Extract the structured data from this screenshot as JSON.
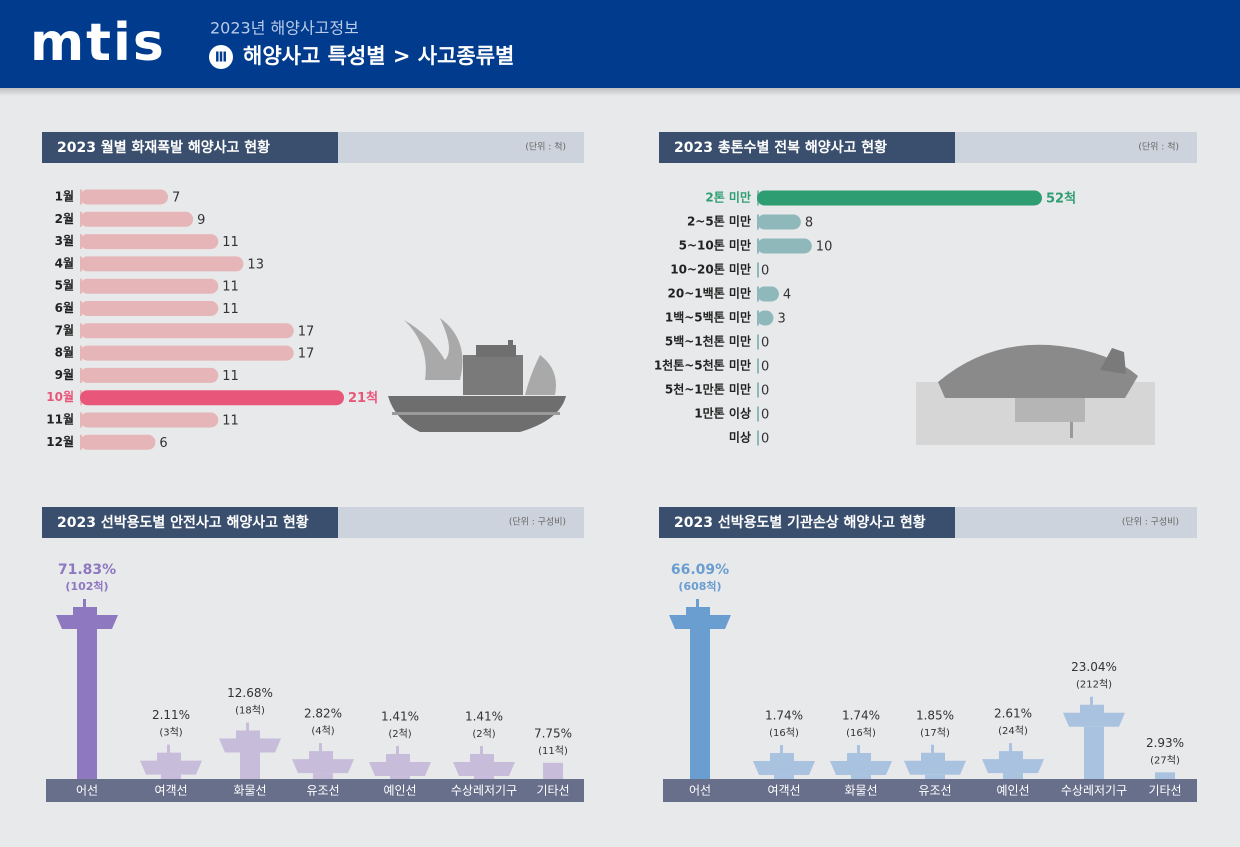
{
  "header": {
    "logo": "mtis",
    "subtitle": "2023년 해양사고정보",
    "badge": "Ⅲ",
    "title": "해양사고 특성별 > 사고종류별"
  },
  "chart_data": [
    {
      "type": "hbar",
      "title": "2023 월별 화재폭발 해양사고 현황",
      "unit": "(단위 : 척)",
      "categories": [
        "1월",
        "2월",
        "3월",
        "4월",
        "5월",
        "6월",
        "7월",
        "8월",
        "9월",
        "10월",
        "11월",
        "12월"
      ],
      "values": [
        7,
        9,
        11,
        13,
        11,
        11,
        17,
        17,
        11,
        21,
        11,
        6
      ],
      "value_labels": [
        "7",
        "9",
        "11",
        "13",
        "11",
        "11",
        "17",
        "17",
        "11",
        "21척",
        "11",
        "6"
      ],
      "color": "#e5b5b7",
      "highlight": {
        "index": 9,
        "color": "#e8567a"
      }
    },
    {
      "type": "hbar",
      "title": "2023 총톤수별 전복 해양사고 현황",
      "unit": "(단위 : 척)",
      "categories": [
        "2톤 미만",
        "2~5톤 미만",
        "5~10톤 미만",
        "10~20톤 미만",
        "20~1백톤 미만",
        "1백~5백톤 미만",
        "5백~1천톤 미만",
        "1천톤~5천톤 미만",
        "5천~1만톤 미만",
        "1만톤 이상",
        "미상"
      ],
      "values": [
        52,
        8,
        10,
        0,
        4,
        3,
        0,
        0,
        0,
        0,
        0
      ],
      "value_labels": [
        "52척",
        "8",
        "10",
        "0",
        "4",
        "3",
        "0",
        "0",
        "0",
        "0",
        "0"
      ],
      "color": "#8fb8bb",
      "highlight": {
        "index": 0,
        "color": "#2e9e72"
      }
    },
    {
      "type": "bar",
      "title": "2023 선박용도별 안전사고 해양사고 현황",
      "unit": "(단위 : 구성비)",
      "categories": [
        "어선",
        "여객선",
        "화물선",
        "유조선",
        "예인선",
        "수상레저기구",
        "기타선"
      ],
      "values": [
        71.83,
        2.11,
        12.68,
        2.82,
        1.41,
        1.41,
        7.75
      ],
      "value_labels": [
        "71.83%",
        "2.11%",
        "12.68%",
        "2.82%",
        "1.41%",
        "1.41%",
        "7.75%"
      ],
      "counts": [
        102,
        3,
        18,
        4,
        2,
        2,
        11
      ],
      "count_labels": [
        "(102척)",
        "(3척)",
        "(18척)",
        "(4척)",
        "(2척)",
        "(2척)",
        "(11척)"
      ],
      "color": "#c8bcdb",
      "highlight": {
        "index": 0,
        "color": "#8e79c0"
      }
    },
    {
      "type": "bar",
      "title": "2023 선박용도별 기관손상 해양사고 현황",
      "unit": "(단위 : 구성비)",
      "categories": [
        "어선",
        "여객선",
        "화물선",
        "유조선",
        "예인선",
        "수상레저기구",
        "기타선"
      ],
      "values": [
        66.09,
        1.74,
        1.74,
        1.85,
        2.61,
        23.04,
        2.93
      ],
      "value_labels": [
        "66.09%",
        "1.74%",
        "1.74%",
        "1.85%",
        "2.61%",
        "23.04%",
        "2.93%"
      ],
      "counts": [
        608,
        16,
        16,
        17,
        24,
        212,
        27
      ],
      "count_labels": [
        "(608척)",
        "(16척)",
        "(16척)",
        "(17척)",
        "(24척)",
        "(212척)",
        "(27척)"
      ],
      "color": "#a9c2e0",
      "highlight": {
        "index": 0,
        "color": "#6b9ed0"
      }
    }
  ]
}
